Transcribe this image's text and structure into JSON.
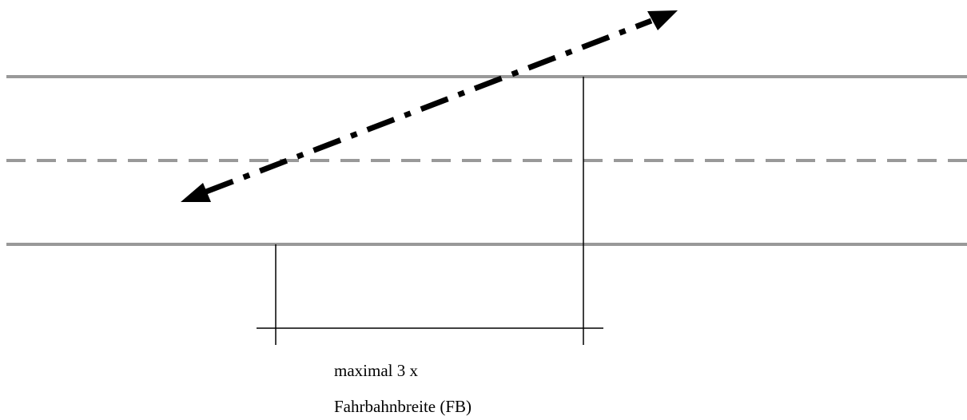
{
  "annotation": {
    "line1": "maximal 3 x",
    "line2": "Fahrbahnbreite (FB)"
  },
  "colors": {
    "road_edge": "#999999",
    "center_line": "#999999",
    "crossing_arrow": "#000000",
    "dimension_lines": "#000000"
  },
  "elements": {
    "road_edges": "solid",
    "center_line": "dashed",
    "crossing_arrow": "dash-dot double-headed"
  }
}
